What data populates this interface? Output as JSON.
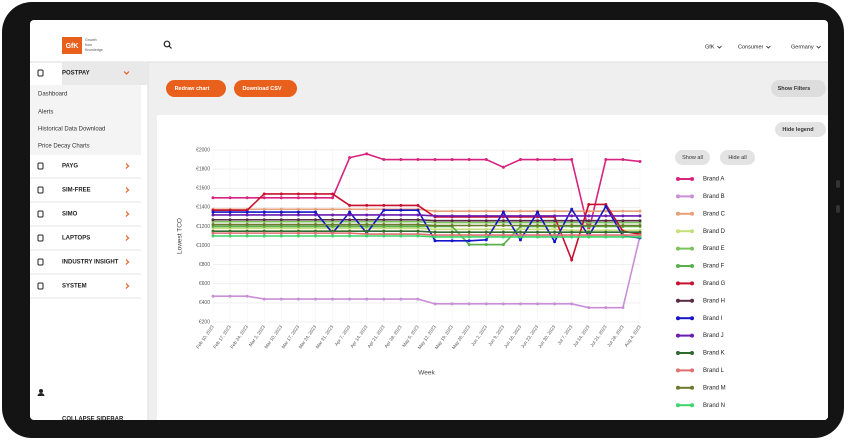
{
  "header": {
    "logo": "GfK",
    "tagline": [
      "Growth",
      "from",
      "Knowledge"
    ],
    "menus": [
      "GfK",
      "Consumer",
      "Germany"
    ]
  },
  "sidebar": {
    "items": [
      "POSTPAY",
      "PAYG",
      "SIM-FREE",
      "SIMO",
      "LAPTOPS",
      "INDUSTRY INSIGHT",
      "SYSTEM"
    ],
    "submenu": [
      "Dashboard",
      "Alerts",
      "Historical Data Download",
      "Price Decay Charts"
    ],
    "collapse": "COLLAPSE SIDEBAR"
  },
  "toolbar": {
    "redraw": "Redraw chart",
    "download": "Download CSV",
    "filters": "Show Filters"
  },
  "legend_controls": {
    "hide_legend": "Hide legend",
    "show_all": "Show all",
    "hide_all": "Hide all"
  },
  "chart_data": {
    "type": "line",
    "xlabel": "Week",
    "ylabel": "Lowest TCO",
    "categories": [
      "Feb 10, 2023",
      "Feb 17, 2023",
      "Feb 24, 2023",
      "Mar 3, 2023",
      "Mar 10, 2023",
      "Mar 17, 2023",
      "Mar 24, 2023",
      "Mar 31, 2023",
      "Apr 7, 2023",
      "Apr 14, 2023",
      "Apr 21, 2023",
      "Apr 28, 2023",
      "May 5, 2023",
      "May 12, 2023",
      "May 19, 2023",
      "May 26, 2023",
      "Jun 2, 2023",
      "Jun 9, 2023",
      "Jun 16, 2023",
      "Jun 23, 2023",
      "Jun 30, 2023",
      "Jul 7, 2023",
      "Jul 14, 2023",
      "Jul 21, 2023",
      "Jul 28, 2023",
      "Aug 4, 2023"
    ],
    "ylim": [
      200,
      2000
    ],
    "yticks": [
      {
        "value": 200,
        "label": "€200"
      },
      {
        "value": 400,
        "label": "€400"
      },
      {
        "value": 600,
        "label": "€600"
      },
      {
        "value": 800,
        "label": "€800"
      },
      {
        "value": 1000,
        "label": "€1000"
      },
      {
        "value": 1200,
        "label": "€1200"
      },
      {
        "value": 1400,
        "label": "€1400"
      },
      {
        "value": 1600,
        "label": "€1600"
      },
      {
        "value": 1800,
        "label": "€1800"
      },
      {
        "value": 2000,
        "label": "€2000"
      }
    ],
    "grid": true,
    "series": [
      {
        "name": "Brand A",
        "color": "#d6247f",
        "values": [
          1500,
          1500,
          1500,
          1500,
          1500,
          1500,
          1500,
          1500,
          1920,
          1960,
          1900,
          1900,
          1900,
          1900,
          1900,
          1900,
          1900,
          1820,
          1900,
          1900,
          1900,
          1900,
          1150,
          1900,
          1900,
          1880
        ]
      },
      {
        "name": "Brand B",
        "color": "#c98fd6",
        "values": [
          470,
          470,
          470,
          440,
          440,
          440,
          440,
          440,
          440,
          440,
          440,
          440,
          440,
          390,
          390,
          390,
          390,
          390,
          390,
          390,
          390,
          390,
          350,
          350,
          350,
          1100
        ]
      },
      {
        "name": "Brand C",
        "color": "#e8a07a",
        "values": [
          1380,
          1380,
          1380,
          1380,
          1380,
          1380,
          1380,
          1380,
          1380,
          1380,
          1380,
          1380,
          1380,
          1360,
          1360,
          1360,
          1360,
          1360,
          1360,
          1360,
          1360,
          1360,
          1360,
          1360,
          1360,
          1360
        ]
      },
      {
        "name": "Brand D",
        "color": "#c5e07a",
        "values": [
          1180,
          1180,
          1180,
          1180,
          1180,
          1180,
          1180,
          1180,
          1180,
          1180,
          1180,
          1180,
          1180,
          1170,
          1170,
          1170,
          1170,
          1170,
          1170,
          1170,
          1170,
          1160,
          1160,
          1160,
          1160,
          1160
        ]
      },
      {
        "name": "Brand E",
        "color": "#7cc35e",
        "values": [
          1250,
          1250,
          1250,
          1250,
          1250,
          1250,
          1250,
          1250,
          1250,
          1250,
          1250,
          1250,
          1250,
          1240,
          1240,
          1240,
          1240,
          1240,
          1240,
          1240,
          1240,
          1240,
          1240,
          1240,
          1240,
          1240
        ]
      },
      {
        "name": "Brand F",
        "color": "#58b04a",
        "values": [
          1200,
          1200,
          1200,
          1200,
          1200,
          1200,
          1200,
          1200,
          1200,
          1200,
          1200,
          1200,
          1200,
          1200,
          1200,
          1010,
          1010,
          1010,
          1200,
          1200,
          1200,
          1200,
          1200,
          1200,
          1200,
          1200
        ]
      },
      {
        "name": "Brand G",
        "color": "#c8102e",
        "values": [
          1370,
          1370,
          1370,
          1540,
          1540,
          1540,
          1540,
          1540,
          1420,
          1420,
          1420,
          1420,
          1420,
          1300,
          1300,
          1300,
          1300,
          1300,
          1300,
          1300,
          1300,
          850,
          1430,
          1430,
          1150,
          1120
        ]
      },
      {
        "name": "Brand H",
        "color": "#5a2a45",
        "values": [
          1270,
          1270,
          1270,
          1270,
          1270,
          1270,
          1270,
          1270,
          1270,
          1270,
          1270,
          1270,
          1270,
          1260,
          1260,
          1260,
          1260,
          1260,
          1260,
          1260,
          1260,
          1260,
          1260,
          1260,
          1260,
          1260
        ]
      },
      {
        "name": "Brand I",
        "color": "#1515c8",
        "values": [
          1350,
          1350,
          1350,
          1350,
          1350,
          1350,
          1350,
          1130,
          1350,
          1130,
          1370,
          1370,
          1370,
          1050,
          1050,
          1050,
          1060,
          1350,
          1060,
          1350,
          1040,
          1380,
          1100,
          1410,
          1100,
          1080
        ]
      },
      {
        "name": "Brand J",
        "color": "#6a1bb0",
        "values": [
          1320,
          1320,
          1320,
          1320,
          1320,
          1320,
          1320,
          1320,
          1320,
          1320,
          1320,
          1320,
          1320,
          1310,
          1310,
          1310,
          1310,
          1310,
          1310,
          1310,
          1310,
          1310,
          1310,
          1310,
          1310,
          1310
        ]
      },
      {
        "name": "Brand K",
        "color": "#2e6b2e",
        "values": [
          1150,
          1150,
          1150,
          1150,
          1150,
          1150,
          1150,
          1150,
          1150,
          1150,
          1150,
          1150,
          1150,
          1140,
          1140,
          1140,
          1140,
          1140,
          1140,
          1140,
          1140,
          1140,
          1140,
          1140,
          1140,
          1140
        ]
      },
      {
        "name": "Brand L",
        "color": "#e07070",
        "values": [
          1130,
          1130,
          1130,
          1130,
          1130,
          1130,
          1130,
          1130,
          1130,
          1120,
          1120,
          1120,
          1120,
          1110,
          1110,
          1110,
          1110,
          1110,
          1110,
          1110,
          1110,
          1110,
          1110,
          1110,
          1110,
          1110
        ]
      },
      {
        "name": "Brand M",
        "color": "#6b7a2a",
        "values": [
          1220,
          1220,
          1220,
          1220,
          1220,
          1220,
          1220,
          1220,
          1220,
          1220,
          1220,
          1220,
          1220,
          1210,
          1210,
          1210,
          1210,
          1210,
          1210,
          1210,
          1210,
          1210,
          1210,
          1210,
          1210,
          1210
        ]
      },
      {
        "name": "Brand N",
        "color": "#3ed46a",
        "values": [
          1100,
          1100,
          1100,
          1100,
          1100,
          1100,
          1100,
          1100,
          1100,
          1100,
          1100,
          1100,
          1100,
          1090,
          1090,
          1090,
          1090,
          1090,
          1090,
          1090,
          1090,
          1090,
          1090,
          1090,
          1090,
          1090
        ]
      }
    ]
  }
}
